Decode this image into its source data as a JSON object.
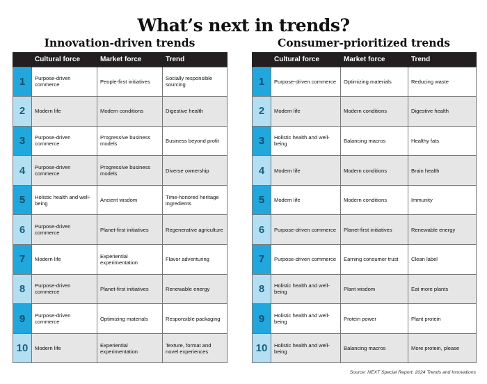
{
  "title": "What’s next in trends?",
  "columns": [
    "Cultural force",
    "Market force",
    "Trend"
  ],
  "innovation": {
    "heading": "Innovation-driven trends",
    "rows": [
      {
        "num": "1",
        "cultural": "Purpose-driven commerce",
        "market": "People-first initiatives",
        "trend": "Socially responsible sourcing"
      },
      {
        "num": "2",
        "cultural": "Modern life",
        "market": "Modern conditions",
        "trend": "Digestive health"
      },
      {
        "num": "3",
        "cultural": "Purpose-driven commerce",
        "market": "Progressive business models",
        "trend": "Business beyond profit"
      },
      {
        "num": "4",
        "cultural": "Purpose-driven commerce",
        "market": "Progressive business models",
        "trend": "Diverse ownership"
      },
      {
        "num": "5",
        "cultural": "Holistic health and well-being",
        "market": "Ancient wisdom",
        "trend": "Time-honored heritage ingredients"
      },
      {
        "num": "6",
        "cultural": "Purpose-driven commerce",
        "market": "Planet-first initiatives",
        "trend": "Regenerative agriculture"
      },
      {
        "num": "7",
        "cultural": "Modern life",
        "market": "Experiential experimentation",
        "trend": "Flavor adventuring"
      },
      {
        "num": "8",
        "cultural": "Purpose-driven commerce",
        "market": "Planet-first initiatives",
        "trend": "Renewable energy"
      },
      {
        "num": "9",
        "cultural": "Purpose-driven commerce",
        "market": "Optimizing materials",
        "trend": "Responsible packaging"
      },
      {
        "num": "10",
        "cultural": "Modern life",
        "market": "Experiential experimentation",
        "trend": "Texture, format and novel experiences"
      }
    ]
  },
  "consumer": {
    "heading": "Consumer-prioritized trends",
    "rows": [
      {
        "num": "1",
        "cultural": "Purpose-driven commerce",
        "market": "Optimizing materials",
        "trend": "Reducing waste"
      },
      {
        "num": "2",
        "cultural": "Modern life",
        "market": "Modern conditions",
        "trend": "Digestive health"
      },
      {
        "num": "3",
        "cultural": "Holistic health and well-being",
        "market": "Balancing macros",
        "trend": "Healthy fats"
      },
      {
        "num": "4",
        "cultural": "Modern life",
        "market": "Modern conditions",
        "trend": "Brain health"
      },
      {
        "num": "5",
        "cultural": "Modern life",
        "market": "Modern conditions",
        "trend": "Immunity"
      },
      {
        "num": "6",
        "cultural": "Purpose-driven commerce",
        "market": "Planet-first initiatives",
        "trend": "Renewable energy"
      },
      {
        "num": "7",
        "cultural": "Purpose-driven commerce",
        "market": "Earning consumer trust",
        "trend": "Clean label"
      },
      {
        "num": "8",
        "cultural": "Holistic health and well-being",
        "market": "Plant wisdom",
        "trend": "Eat more plants"
      },
      {
        "num": "9",
        "cultural": "Holistic health and well-being",
        "market": "Protein power",
        "trend": "Plant protein"
      },
      {
        "num": "10",
        "cultural": "Holistic health and well-being",
        "market": "Balancing macros",
        "trend": "More protein, please"
      }
    ]
  },
  "source": "Source: NEXT Special Report: 2024 Trends and Innovations",
  "colors": {
    "header_bg": "#231f20",
    "num_dark": "#21a7dc",
    "num_light": "#b4dff3",
    "row_alt": "#e6e6e7"
  }
}
